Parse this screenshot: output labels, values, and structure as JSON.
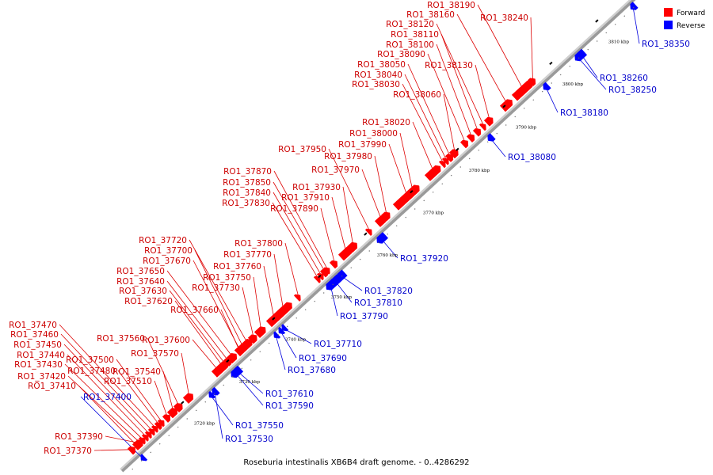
{
  "caption": "Roseburia intestinalis XB6B4 draft genome. - 0..4286292",
  "legend": [
    {
      "label": "Forward",
      "color": "#ff0000"
    },
    {
      "label": "Reverse",
      "color": "#0000ff"
    }
  ],
  "colors": {
    "forward": "#ff0000",
    "reverse": "#0000ff",
    "forward_line": "#dd0000",
    "reverse_line": "#0000dd"
  },
  "axis_ticks": [
    "3720 kbp",
    "3730 kbp",
    "3740 kbp",
    "3750 kbp",
    "3760 kbp",
    "3770 kbp",
    "3780 kbp",
    "3790 kbp",
    "3800 kbp",
    "3810 kbp"
  ],
  "genes": [
    {
      "name": "RO1_37370",
      "strand": "forward"
    },
    {
      "name": "RO1_37390",
      "strand": "forward"
    },
    {
      "name": "RO1_37400",
      "strand": "reverse"
    },
    {
      "name": "RO1_37410",
      "strand": "forward"
    },
    {
      "name": "RO1_37420",
      "strand": "forward"
    },
    {
      "name": "RO1_37430",
      "strand": "forward"
    },
    {
      "name": "RO1_37440",
      "strand": "forward"
    },
    {
      "name": "RO1_37450",
      "strand": "forward"
    },
    {
      "name": "RO1_37460",
      "strand": "forward"
    },
    {
      "name": "RO1_37470",
      "strand": "forward"
    },
    {
      "name": "RO1_37480",
      "strand": "forward"
    },
    {
      "name": "RO1_37500",
      "strand": "forward"
    },
    {
      "name": "RO1_37510",
      "strand": "forward"
    },
    {
      "name": "RO1_37530",
      "strand": "reverse"
    },
    {
      "name": "RO1_37540",
      "strand": "forward"
    },
    {
      "name": "RO1_37550",
      "strand": "reverse"
    },
    {
      "name": "RO1_37560",
      "strand": "forward"
    },
    {
      "name": "RO1_37570",
      "strand": "forward"
    },
    {
      "name": "RO1_37590",
      "strand": "reverse"
    },
    {
      "name": "RO1_37600",
      "strand": "forward"
    },
    {
      "name": "RO1_37610",
      "strand": "reverse"
    },
    {
      "name": "RO1_37620",
      "strand": "forward"
    },
    {
      "name": "RO1_37630",
      "strand": "forward"
    },
    {
      "name": "RO1_37640",
      "strand": "forward"
    },
    {
      "name": "RO1_37650",
      "strand": "forward"
    },
    {
      "name": "RO1_37660",
      "strand": "forward"
    },
    {
      "name": "RO1_37670",
      "strand": "forward"
    },
    {
      "name": "RO1_37680",
      "strand": "reverse"
    },
    {
      "name": "RO1_37690",
      "strand": "reverse"
    },
    {
      "name": "RO1_37700",
      "strand": "forward"
    },
    {
      "name": "RO1_37710",
      "strand": "reverse"
    },
    {
      "name": "RO1_37720",
      "strand": "forward"
    },
    {
      "name": "RO1_37730",
      "strand": "forward"
    },
    {
      "name": "RO1_37750",
      "strand": "forward"
    },
    {
      "name": "RO1_37760",
      "strand": "forward"
    },
    {
      "name": "RO1_37770",
      "strand": "forward"
    },
    {
      "name": "RO1_37790",
      "strand": "reverse"
    },
    {
      "name": "RO1_37800",
      "strand": "forward"
    },
    {
      "name": "RO1_37810",
      "strand": "reverse"
    },
    {
      "name": "RO1_37820",
      "strand": "reverse"
    },
    {
      "name": "RO1_37830",
      "strand": "forward"
    },
    {
      "name": "RO1_37840",
      "strand": "forward"
    },
    {
      "name": "RO1_37850",
      "strand": "forward"
    },
    {
      "name": "RO1_37870",
      "strand": "forward"
    },
    {
      "name": "RO1_37890",
      "strand": "forward"
    },
    {
      "name": "RO1_37910",
      "strand": "forward"
    },
    {
      "name": "RO1_37920",
      "strand": "reverse"
    },
    {
      "name": "RO1_37930",
      "strand": "forward"
    },
    {
      "name": "RO1_37950",
      "strand": "forward"
    },
    {
      "name": "RO1_37970",
      "strand": "forward"
    },
    {
      "name": "RO1_37980",
      "strand": "forward"
    },
    {
      "name": "RO1_37990",
      "strand": "forward"
    },
    {
      "name": "RO1_38000",
      "strand": "forward"
    },
    {
      "name": "RO1_38020",
      "strand": "forward"
    },
    {
      "name": "RO1_38030",
      "strand": "forward"
    },
    {
      "name": "RO1_38040",
      "strand": "forward"
    },
    {
      "name": "RO1_38050",
      "strand": "forward"
    },
    {
      "name": "RO1_38060",
      "strand": "forward"
    },
    {
      "name": "RO1_38080",
      "strand": "reverse"
    },
    {
      "name": "RO1_38090",
      "strand": "forward"
    },
    {
      "name": "RO1_38100",
      "strand": "forward"
    },
    {
      "name": "RO1_38110",
      "strand": "forward"
    },
    {
      "name": "RO1_38120",
      "strand": "forward"
    },
    {
      "name": "RO1_38130",
      "strand": "forward"
    },
    {
      "name": "RO1_38160",
      "strand": "forward"
    },
    {
      "name": "RO1_38180",
      "strand": "reverse"
    },
    {
      "name": "RO1_38190",
      "strand": "forward"
    },
    {
      "name": "RO1_38240",
      "strand": "forward"
    },
    {
      "name": "RO1_38250",
      "strand": "reverse"
    },
    {
      "name": "RO1_38260",
      "strand": "reverse"
    },
    {
      "name": "RO1_38350",
      "strand": "reverse"
    }
  ]
}
